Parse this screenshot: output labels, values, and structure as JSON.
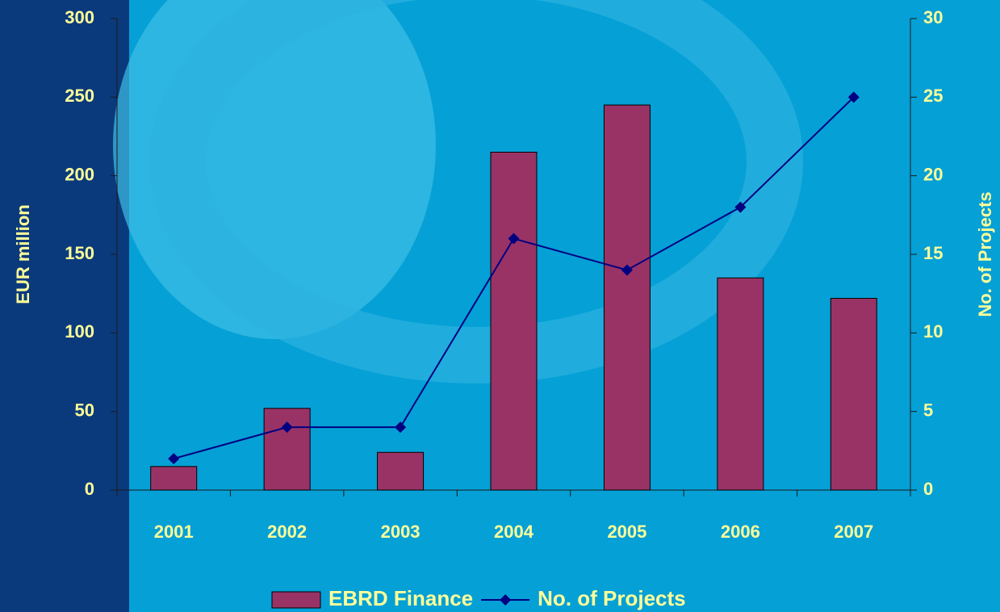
{
  "chart_data": {
    "type": "bar-line",
    "categories": [
      "2001",
      "2002",
      "2003",
      "2004",
      "2005",
      "2006",
      "2007"
    ],
    "series": [
      {
        "name": "EBRD Finance",
        "type": "bar",
        "color": "#993366",
        "values": [
          15,
          52,
          24,
          215,
          245,
          135,
          122
        ]
      },
      {
        "name": "No. of Projects",
        "type": "line",
        "color": "#000080",
        "axis": "y2",
        "values": [
          2,
          4,
          4,
          16,
          14,
          18,
          25
        ]
      }
    ],
    "ylabel": "EUR million",
    "y2label": "No. of Projects",
    "ylim": [
      0,
      300
    ],
    "yticks": [
      0,
      50,
      100,
      150,
      200,
      250,
      300
    ],
    "y2lim": [
      0,
      30
    ],
    "y2ticks": [
      0,
      5,
      10,
      15,
      20,
      25,
      30
    ],
    "legend": "bottom"
  }
}
